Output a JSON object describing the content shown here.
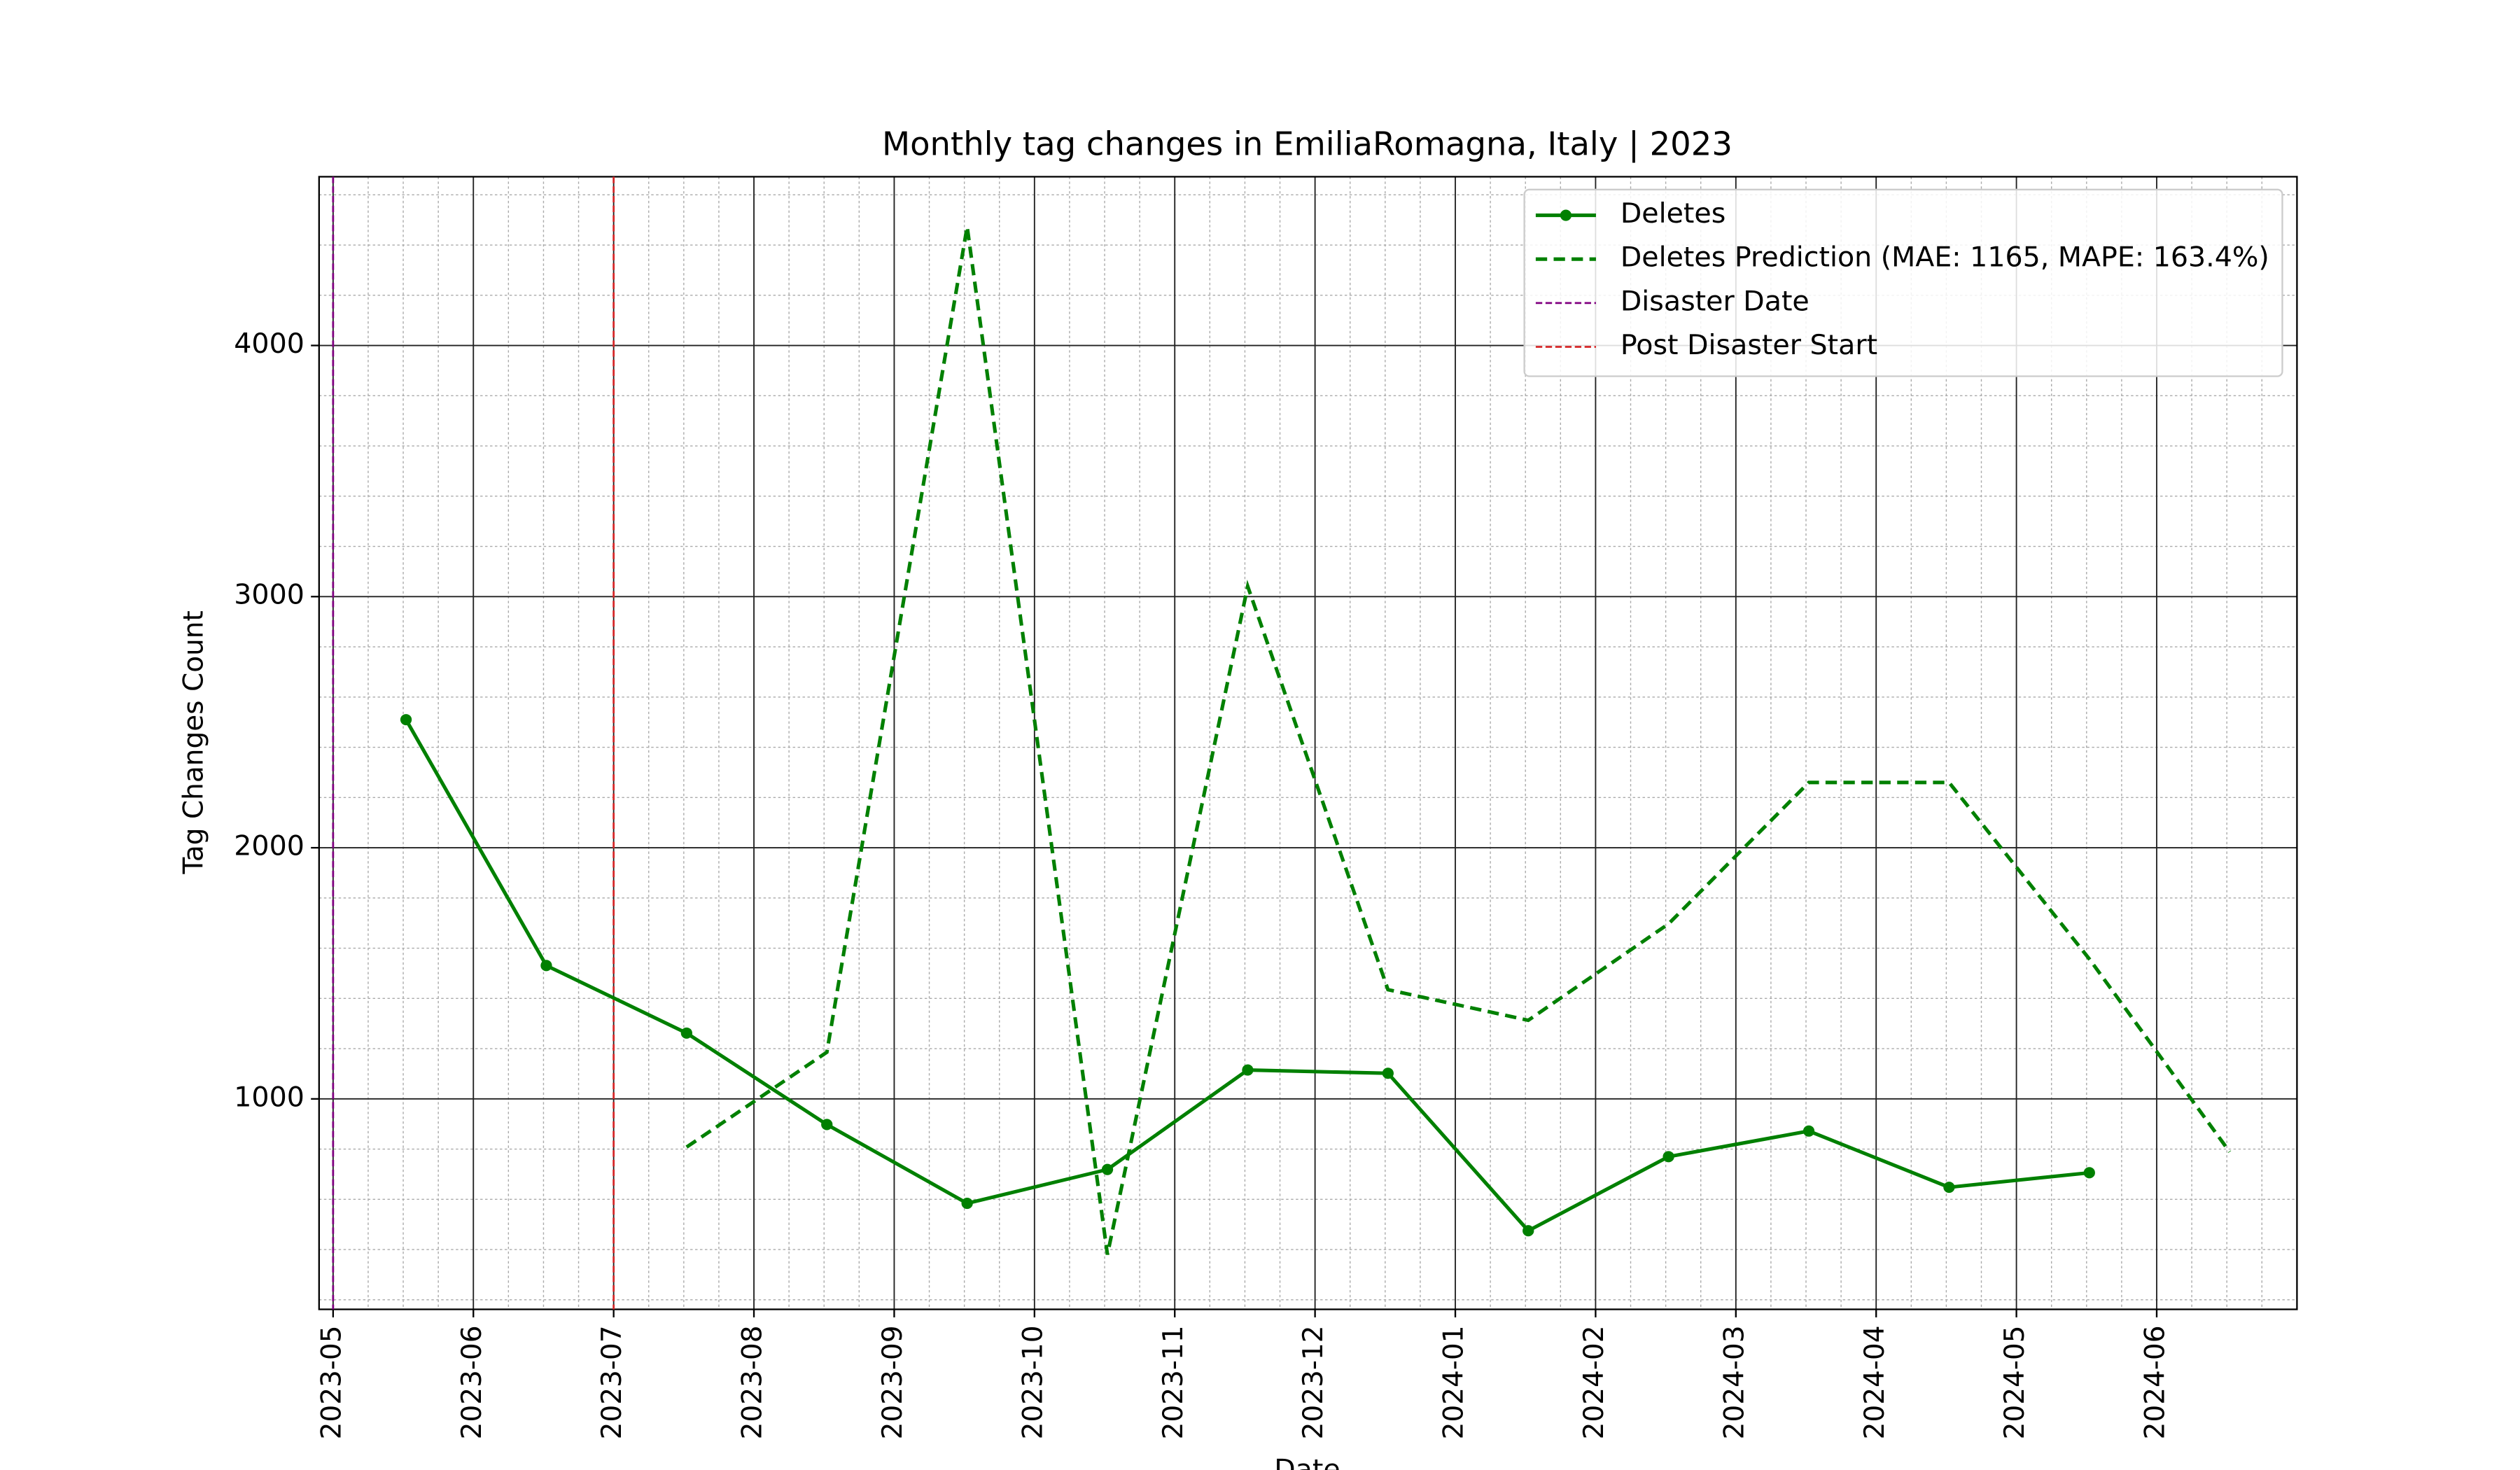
{
  "chart_data": {
    "type": "line",
    "title": "Monthly tag changes in EmiliaRomagna, Italy | 2023",
    "x_label": "Date",
    "y_label": "Tag Changes Count",
    "xlim": [
      "2023-05",
      "2024-07"
    ],
    "xticks": [
      "2023-05",
      "2023-06",
      "2023-07",
      "2023-08",
      "2023-09",
      "2023-10",
      "2023-11",
      "2023-12",
      "2024-01",
      "2024-02",
      "2024-03",
      "2024-04",
      "2024-05",
      "2024-06"
    ],
    "ylim": [
      162,
      4672
    ],
    "yticks": [
      1000,
      2000,
      3000,
      4000
    ],
    "grid": true,
    "legend": "upper right",
    "series": [
      {
        "name": "Deletes",
        "color": "green",
        "style": "solid-marker",
        "x": [
          "2023-05",
          "2023-06",
          "2023-07",
          "2023-08",
          "2023-09",
          "2023-10",
          "2023-11",
          "2023-12",
          "2024-01",
          "2024-02",
          "2024-03",
          "2024-04",
          "2024-05"
        ],
        "values": [
          2510,
          1531,
          1262,
          898,
          584,
          719,
          1115,
          1102,
          475,
          770,
          872,
          648,
          706
        ]
      },
      {
        "name": "Deletes Prediction (MAE: 1165, MAPE: 163.4%)",
        "color": "green",
        "style": "dashed",
        "x": [
          "2023-07",
          "2023-08",
          "2023-09",
          "2023-10",
          "2023-11",
          "2023-12",
          "2024-01",
          "2024-02",
          "2024-03",
          "2024-04",
          "2024-05",
          "2024-06"
        ],
        "values": [
          808,
          1186,
          4473,
          380,
          3041,
          1435,
          1313,
          1697,
          2260,
          2260,
          1557,
          789
        ]
      }
    ],
    "vlines": [
      {
        "name": "Disaster Date",
        "color": "purple",
        "x": "2023-05"
      },
      {
        "name": "Post Disaster Start",
        "color": "#d62728",
        "x": "2023-07"
      }
    ]
  }
}
